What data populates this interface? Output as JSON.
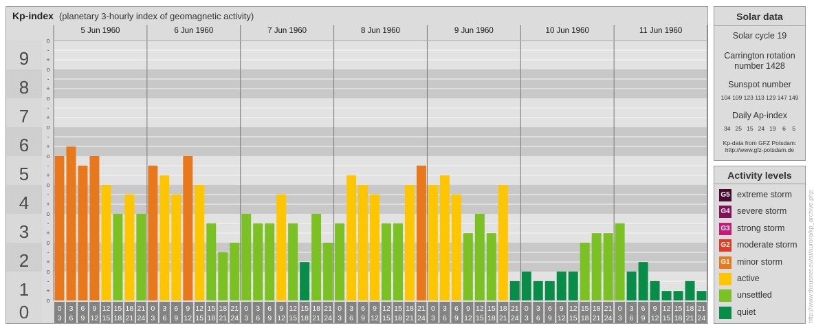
{
  "header": {
    "title": "Kp-index",
    "subtitle": "(planetary 3-hourly index of geomagnetic activity)"
  },
  "chart_data": {
    "type": "bar",
    "y_range": [
      0,
      9
    ],
    "y_tick_labels": [
      "0",
      "1",
      "2",
      "3",
      "4",
      "5",
      "6",
      "7",
      "8",
      "9"
    ],
    "y_minor_labels": [
      "+",
      "o",
      "-"
    ],
    "interval_labels": [
      [
        "0",
        "3"
      ],
      [
        "3",
        "6"
      ],
      [
        "6",
        "9"
      ],
      [
        "9",
        "12"
      ],
      [
        "12",
        "15"
      ],
      [
        "15",
        "18"
      ],
      [
        "18",
        "21"
      ],
      [
        "21",
        "24"
      ]
    ],
    "days": [
      {
        "date": "5 Jun 1960",
        "kp": [
          5.0,
          5.33,
          4.67,
          5.0,
          4.0,
          3.0,
          3.67,
          3.0
        ]
      },
      {
        "date": "6 Jun 1960",
        "kp": [
          4.67,
          4.33,
          3.67,
          5.0,
          4.0,
          2.67,
          1.67,
          2.0
        ]
      },
      {
        "date": "7 Jun 1960",
        "kp": [
          3.0,
          2.67,
          2.67,
          3.67,
          2.67,
          1.33,
          3.0,
          2.0
        ]
      },
      {
        "date": "8 Jun 1960",
        "kp": [
          2.67,
          4.33,
          4.0,
          3.67,
          2.67,
          2.67,
          4.0,
          4.67
        ]
      },
      {
        "date": "9 Jun 1960",
        "kp": [
          4.0,
          4.33,
          3.67,
          2.33,
          3.0,
          2.33,
          4.0,
          0.67
        ]
      },
      {
        "date": "10 Jun 1960",
        "kp": [
          1.0,
          0.67,
          0.67,
          1.0,
          1.0,
          2.0,
          2.33,
          2.33
        ]
      },
      {
        "date": "11 Jun 1960",
        "kp": [
          2.67,
          1.0,
          1.33,
          0.67,
          0.33,
          0.33,
          0.67,
          0.33
        ]
      }
    ],
    "level_colors": {
      "quiet": "#0a8c49",
      "unsettled": "#7cc124",
      "active": "#fec600",
      "g1": "#e7791c",
      "g2": "#e03c24",
      "g3": "#c71a7a",
      "g4": "#82115a",
      "g5": "#4a0a30"
    }
  },
  "solar_data": {
    "title": "Solar data",
    "solar_cycle": "Solar cycle 19",
    "carrington_line1": "Carrington rotation",
    "carrington_line2": "number 1428",
    "sunspot_title": "Sunspot number",
    "sunspot_values": "104 109 123 113 129 147 149",
    "ap_title": "Daily Ap-index",
    "ap_values": "34   25   15   24   19    6    5",
    "source_line1": "Kp-data from GFZ Potsdam:",
    "source_line2": "http://www.gfz-potsdam.de"
  },
  "activity_levels": {
    "title": "Activity levels",
    "items": [
      {
        "code": "G5",
        "label": "extreme storm",
        "color": "#4a0a30"
      },
      {
        "code": "G4",
        "label": "severe storm",
        "color": "#82115a"
      },
      {
        "code": "G3",
        "label": "strong storm",
        "color": "#c71a7a"
      },
      {
        "code": "G2",
        "label": "moderate storm",
        "color": "#e03c24"
      },
      {
        "code": "G1",
        "label": "minor storm",
        "color": "#e7791c"
      },
      {
        "code": "",
        "label": "active",
        "color": "#fec600"
      },
      {
        "code": "",
        "label": "unsettled",
        "color": "#7cc124"
      },
      {
        "code": "",
        "label": "quiet",
        "color": "#0a8c49"
      }
    ]
  },
  "watermark": "http://www.theusnet.eu/at/aurora/kp_archive.php"
}
